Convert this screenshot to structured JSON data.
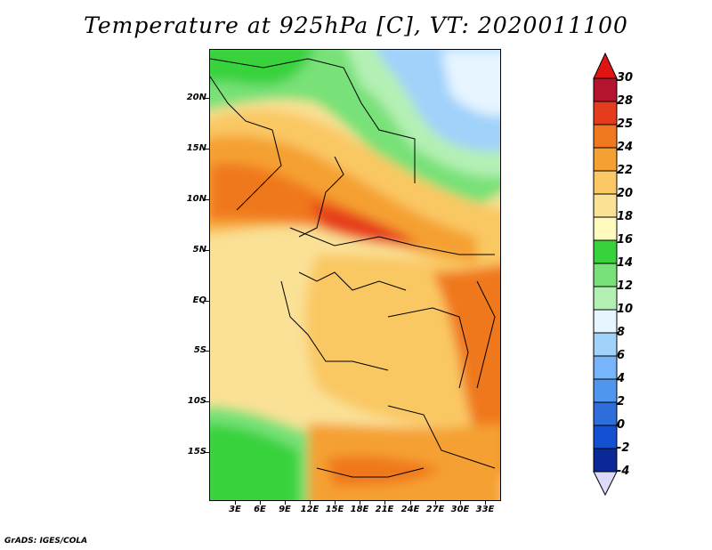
{
  "title": "Temperature at 925hPa [C], VT: 2020011100",
  "footer": "GrADS: IGES/COLA",
  "lat_labels": [
    "20N",
    "15N",
    "10N",
    "5N",
    "EQ",
    "5S",
    "10S",
    "15S"
  ],
  "lon_labels": [
    "3E",
    "6E",
    "9E",
    "12E",
    "15E",
    "18E",
    "21E",
    "24E",
    "27E",
    "30E",
    "33E"
  ],
  "colorbar": {
    "labels": [
      "30",
      "28",
      "25",
      "24",
      "22",
      "20",
      "18",
      "16",
      "14",
      "12",
      "10",
      "8",
      "6",
      "4",
      "2",
      "0",
      "-2",
      "-4"
    ],
    "colors": [
      "#b4142d",
      "#e63c1e",
      "#f0781e",
      "#f5a032",
      "#fac864",
      "#fae196",
      "#fffabe",
      "#37d23c",
      "#78e178",
      "#b4f0b4",
      "#e6f5ff",
      "#a0d2fa",
      "#78b4fa",
      "#5096f0",
      "#2d6edc",
      "#1450d2",
      "#0a2896"
    ],
    "top_color": "#e11414",
    "bottom_color": "#dcdcfa"
  }
}
